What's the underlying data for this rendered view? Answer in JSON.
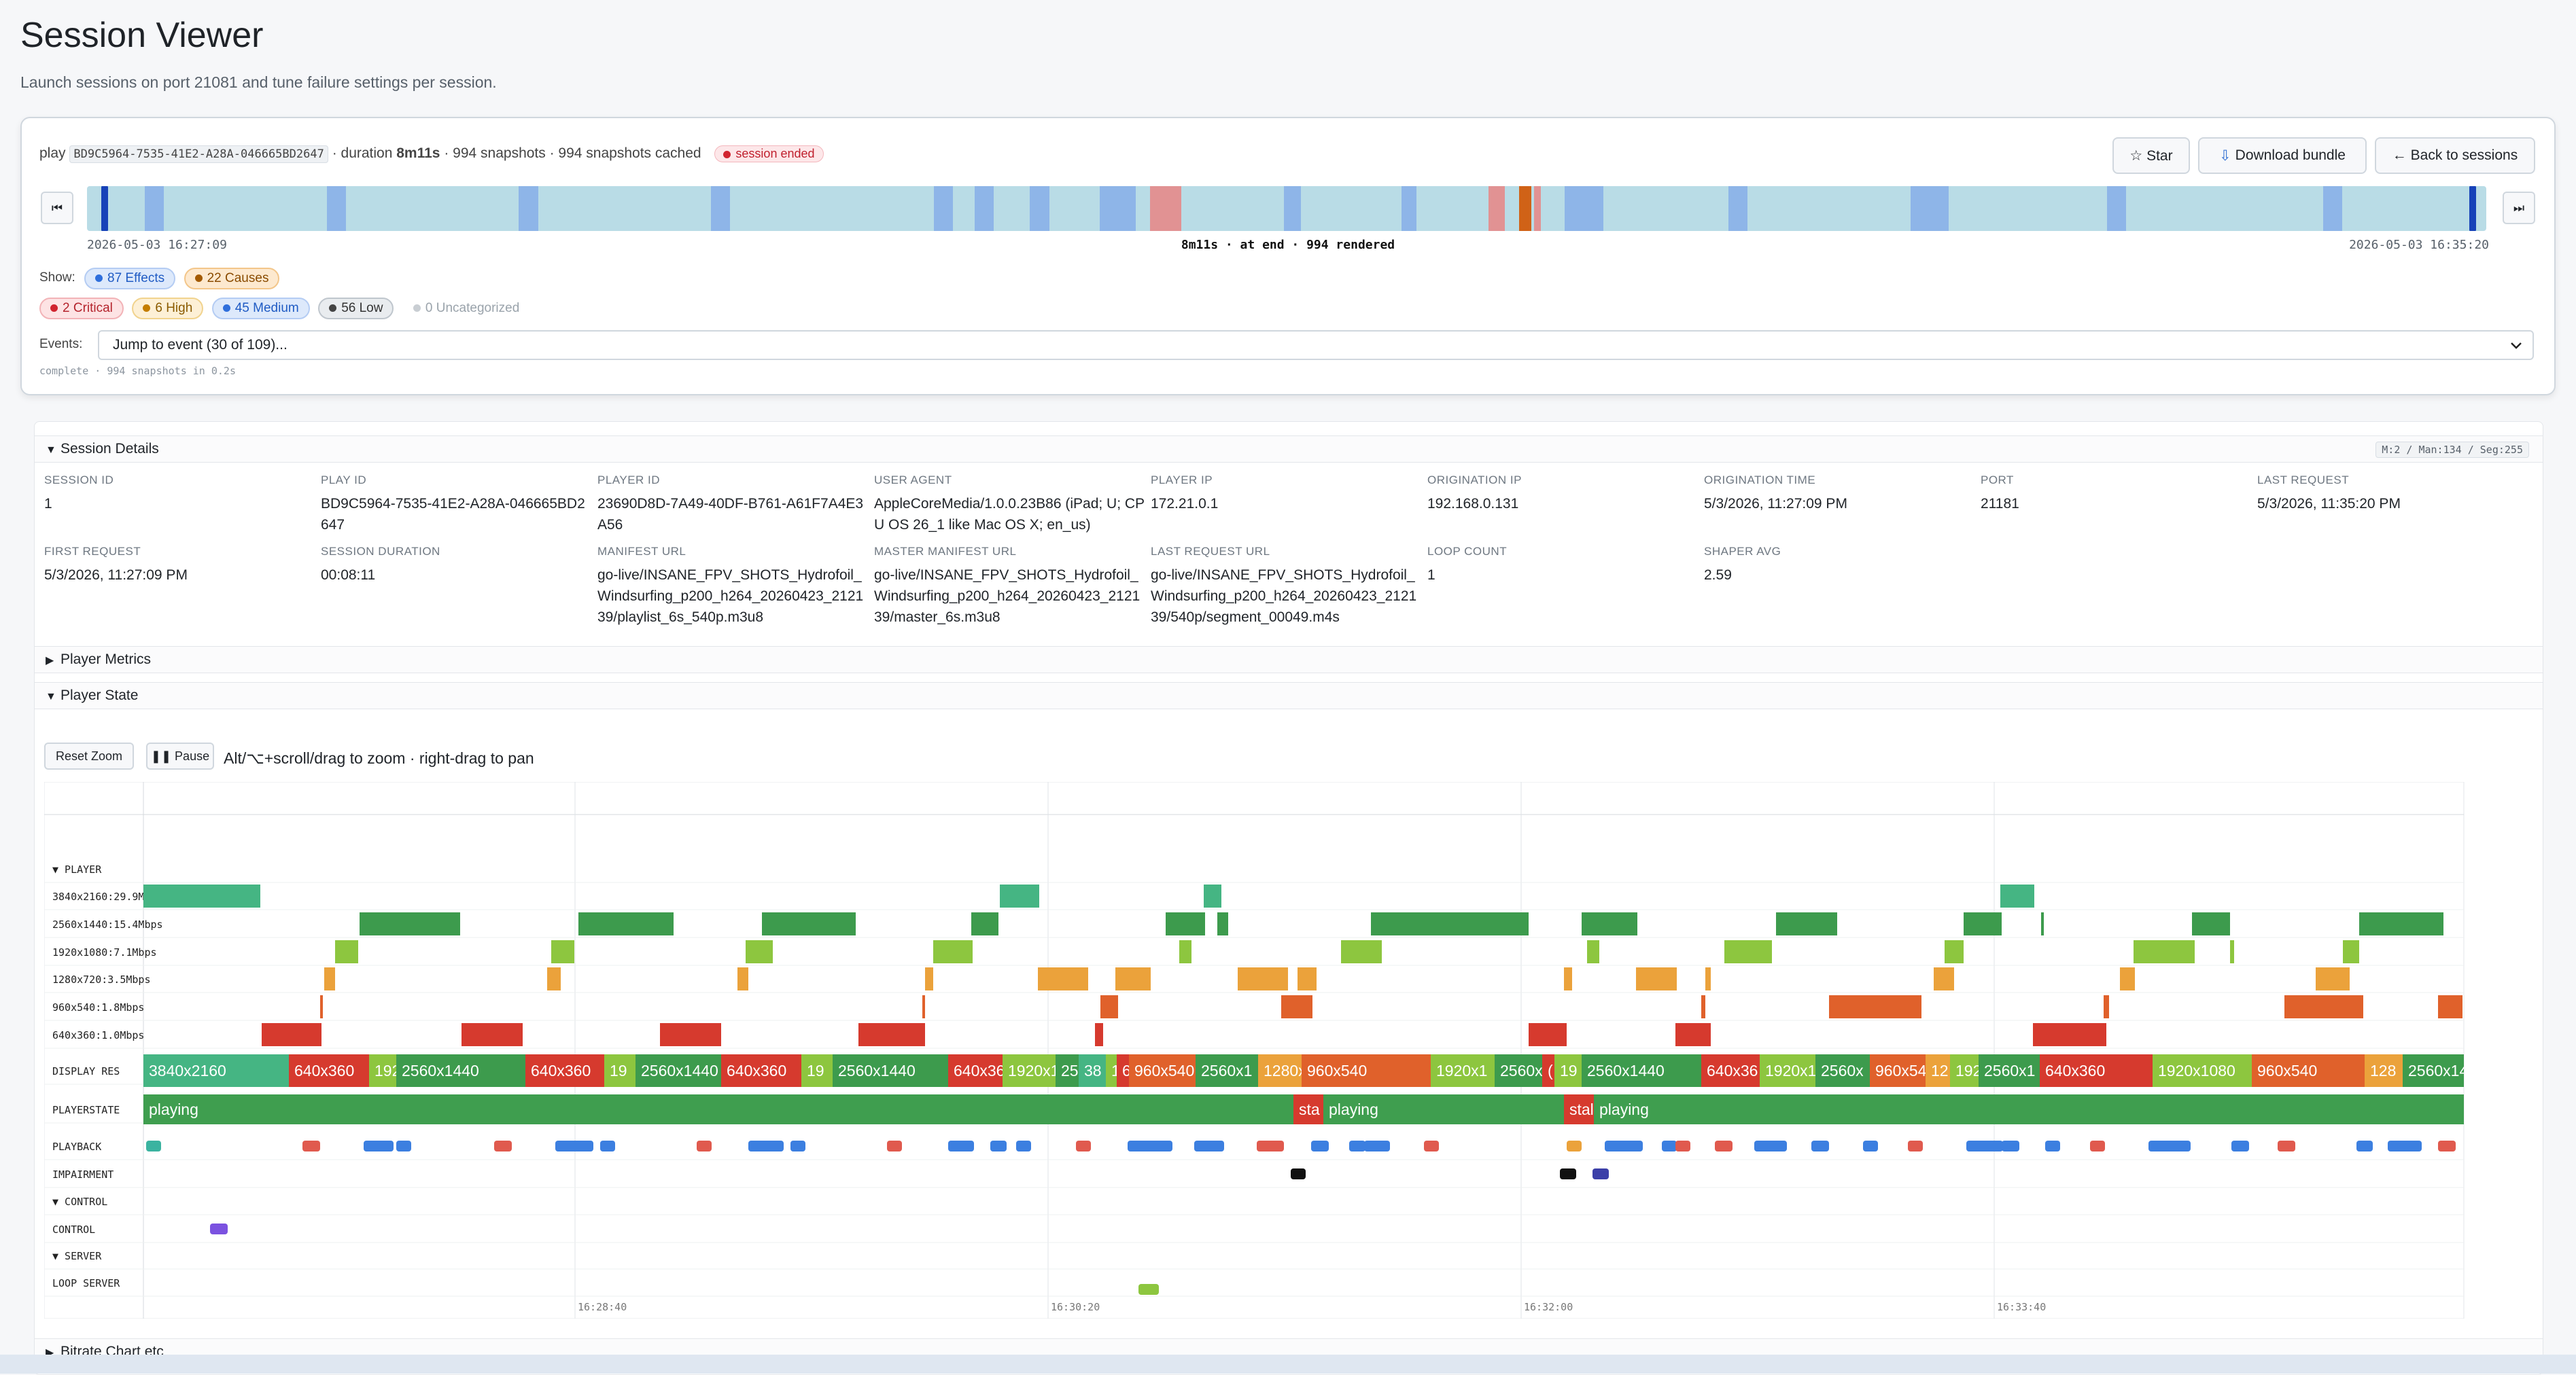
{
  "page": {
    "title": "Session Viewer",
    "subtitle": "Launch sessions on port 21081 and tune failure settings per session."
  },
  "summary": {
    "play_prefix": "play",
    "play_id": "BD9C5964-7535-41E2-A28A-046665BD2647",
    "duration_prefix": "· duration",
    "duration": "8m11s",
    "snapshots": "· 994 snapshots · 994 snapshots cached",
    "status": "session ended"
  },
  "actions": {
    "star": "☆ Star",
    "download": "Download bundle",
    "back": "← Back to sessions"
  },
  "timeline": {
    "start": "2026-05-03 16:27:09",
    "end": "2026-05-03 16:35:20",
    "center": "8m11s · at end · 994 rendered",
    "first_icon": "⏮",
    "last_icon": "⏭",
    "colors": {
      "bar": "#b9dce6",
      "edge": "#1742b8",
      "medium": "#8ab0e8",
      "high": "#e58a8a",
      "critical": "#d35400"
    }
  },
  "filters": {
    "show_label": "Show:",
    "effects": "87 Effects",
    "causes": "22 Causes",
    "critical": "2 Critical",
    "high": "6 High",
    "medium": "45 Medium",
    "low": "56 Low",
    "uncategorized": "0 Uncategorized"
  },
  "events": {
    "label": "Events:",
    "selected": "Jump to event (30 of 109)..."
  },
  "status_line": "complete · 994 snapshots in 0.2s",
  "details": {
    "header": "Session Details",
    "zoom_badge": "M:2 / Man:134 / Seg:255",
    "fields": [
      {
        "label": "SESSION ID",
        "value": "1"
      },
      {
        "label": "PLAY ID",
        "value": "BD9C5964-7535-41E2-A28A-046665BD2647"
      },
      {
        "label": "PLAYER ID",
        "value": "23690D8D-7A49-40DF-B761-A61F7A4E3A56"
      },
      {
        "label": "USER AGENT",
        "value": "AppleCoreMedia/1.0.0.23B86 (iPad; U; CPU OS 26_1 like Mac OS X; en_us)"
      },
      {
        "label": "PLAYER IP",
        "value": "172.21.0.1"
      },
      {
        "label": "ORIGINATION IP",
        "value": "192.168.0.131"
      },
      {
        "label": "ORIGINATION TIME",
        "value": "5/3/2026, 11:27:09 PM"
      },
      {
        "label": "PORT",
        "value": "21181"
      },
      {
        "label": "LAST REQUEST",
        "value": "5/3/2026, 11:35:20 PM"
      },
      {
        "label": "FIRST REQUEST",
        "value": "5/3/2026, 11:27:09 PM"
      },
      {
        "label": "SESSION DURATION",
        "value": "00:08:11"
      },
      {
        "label": "MANIFEST URL",
        "value": "go-live/INSANE_FPV_SHOTS_Hydrofoil_Windsurfing_p200_h264_20260423_212139/playlist_6s_540p.m3u8"
      },
      {
        "label": "MASTER MANIFEST URL",
        "value": "go-live/INSANE_FPV_SHOTS_Hydrofoil_Windsurfing_p200_h264_20260423_212139/master_6s.m3u8"
      },
      {
        "label": "LAST REQUEST URL",
        "value": "go-live/INSANE_FPV_SHOTS_Hydrofoil_Windsurfing_p200_h264_20260423_212139/540p/segment_00049.m4s"
      },
      {
        "label": "LOOP COUNT",
        "value": "1"
      },
      {
        "label": "SHAPER AVG",
        "value": "2.59"
      }
    ]
  },
  "sections": {
    "player_metrics": "Player Metrics",
    "player_state": "Player State",
    "bitrate_chart": "Bitrate Chart etc"
  },
  "player_state": {
    "reset_zoom": "Reset Zoom",
    "pause": "❚❚ Pause",
    "hint": "Alt/⌥+scroll/drag to zoom · right-drag to pan"
  },
  "chart_data": {
    "type": "timeline",
    "time_ticks": [
      "16:28:40",
      "16:30:20",
      "16:32:00",
      "16:33:40"
    ],
    "groups": [
      {
        "name": "PLAYER",
        "rows": [
          "3840x2160:29.9Mbps",
          "2560x1440:15.4Mbps",
          "1920x1080:7.1Mbps",
          "1280x720:3.5Mbps",
          "960x540:1.8Mbps",
          "640x360:1.0Mbps",
          "DISPLAY RES",
          "PLAYERSTATE",
          "PLAYBACK",
          "IMPAIRMENT"
        ]
      },
      {
        "name": "CONTROL",
        "rows": [
          "CONTROL"
        ]
      },
      {
        "name": "SERVER",
        "rows": [
          "LOOP SERVER"
        ]
      }
    ],
    "display_res_labels": [
      "3840x2160",
      "640x360",
      "192",
      "2560x1440",
      "640x360",
      "19",
      "2560x1440",
      "640x360",
      "19",
      "2560x1440",
      "640x36",
      "1920x1",
      "256",
      "38",
      "1",
      "6",
      "960x540",
      "2560x1",
      "1280x",
      "960x540",
      "1920x1",
      "2560x1440",
      "(",
      "19",
      "2560x1440",
      "640x36",
      "1920x1",
      "2560x",
      "960x54",
      "12",
      "192",
      "2560x1",
      "640x360",
      "1920x1080",
      "960x540",
      "128",
      "2560x14"
    ],
    "playerstate_labels": [
      "playing",
      "sta",
      "playing",
      "stal",
      "playing"
    ],
    "colors": {
      "3840x2160": "#45b583",
      "2560x1440": "#3d9b4d",
      "1920x1080": "#8dc63f",
      "1280x720": "#eba23b",
      "960x540": "#e0612b",
      "640x360": "#d63a2e",
      "playing": "#3f9e4f",
      "stalled": "#d63a2e"
    }
  }
}
